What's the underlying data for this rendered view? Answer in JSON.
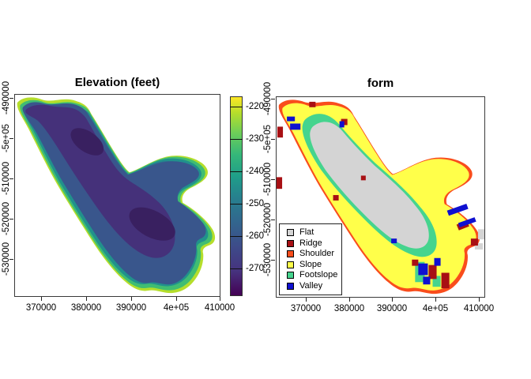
{
  "panels": {
    "elevation": {
      "title": "Elevation (feet)",
      "x_tick_labels": [
        "370000",
        "380000",
        "390000",
        "4e+05",
        "410000"
      ],
      "y_tick_labels": [
        "-490000",
        "-5e+05",
        "-510000",
        "-520000",
        "-530000"
      ],
      "colorbar": {
        "tick_labels": [
          "-220",
          "-230",
          "-240",
          "-250",
          "-260",
          "-270"
        ],
        "palette": "viridis",
        "gradient_stops": [
          "#440154 0%",
          "#46327e 12%",
          "#3e4a89 24%",
          "#31688e 38%",
          "#26828e 50%",
          "#1f9e89 60%",
          "#35b779 71%",
          "#6ece58 82%",
          "#b5de2b 92%",
          "#fde725 100%"
        ]
      }
    },
    "form": {
      "title": "form",
      "x_tick_labels": [
        "370000",
        "380000",
        "390000",
        "4e+05",
        "410000"
      ],
      "y_tick_labels": [
        "-490000",
        "-5e+05",
        "-510000",
        "-520000",
        "-530000"
      ],
      "legend": {
        "items": [
          {
            "label": "Flat",
            "color": "#d4d4d4"
          },
          {
            "label": "Ridge",
            "color": "#a81014"
          },
          {
            "label": "Shoulder",
            "color": "#f94d1c"
          },
          {
            "label": "Slope",
            "color": "#ffff4a"
          },
          {
            "label": "Footslope",
            "color": "#45d48e"
          },
          {
            "label": "Valley",
            "color": "#0f10d0"
          }
        ]
      }
    }
  },
  "class_colors": {
    "flat": "#d4d4d4",
    "ridge": "#a81014",
    "shoulder": "#f94d1c",
    "slope": "#ffff4a",
    "footslope": "#45d48e",
    "valley": "#0f10d0"
  },
  "viridis": {
    "bands": [
      "#b5de2b",
      "#40bd72",
      "#21918c",
      "#2f6c8e",
      "#39568c",
      "#45317a",
      "#392060"
    ]
  },
  "chart_data": [
    {
      "type": "heatmap",
      "title": "Elevation (feet)",
      "xlabel": "",
      "ylabel": "",
      "x_ticks": [
        370000,
        380000,
        390000,
        400000,
        410000
      ],
      "y_ticks": [
        -490000,
        -500000,
        -510000,
        -520000,
        -530000
      ],
      "x_range": [
        364000,
        411000
      ],
      "y_range": [
        -540000,
        -489000
      ],
      "colorbar_ticks": [
        -220,
        -230,
        -240,
        -250,
        -260,
        -270
      ],
      "value_range": [
        -278,
        -216
      ],
      "palette": "viridis",
      "legend_position": "right-colorbar",
      "grid": false,
      "description": "Raster map of an elongated NW-SE basin; interior values near -270 ft (dark purple) grade outward through blue, teal and green to about -220 ft (yellow) at the edges. A lobe protrudes on the right side and a rounded lobe extends to the bottom."
    },
    {
      "type": "heatmap",
      "title": "form",
      "xlabel": "",
      "ylabel": "",
      "x_ticks": [
        370000,
        380000,
        390000,
        400000,
        410000
      ],
      "y_ticks": [
        -490000,
        -500000,
        -510000,
        -520000,
        -530000
      ],
      "x_range": [
        364000,
        411000
      ],
      "y_range": [
        -540000,
        -489000
      ],
      "categories": [
        "Flat",
        "Ridge",
        "Shoulder",
        "Slope",
        "Footslope",
        "Valley"
      ],
      "legend_position": "bottom-left-inside",
      "grid": false,
      "description": "Categorical landform raster of the same basin: an orange Shoulder rim around the outside, a broad yellow Slope band, a green Footslope ring, and a gray Flat core along the axis, with scattered dark-red Ridge and blue Valley patches (upper-left arm, right edge and bottom-center clusters)."
    }
  ]
}
